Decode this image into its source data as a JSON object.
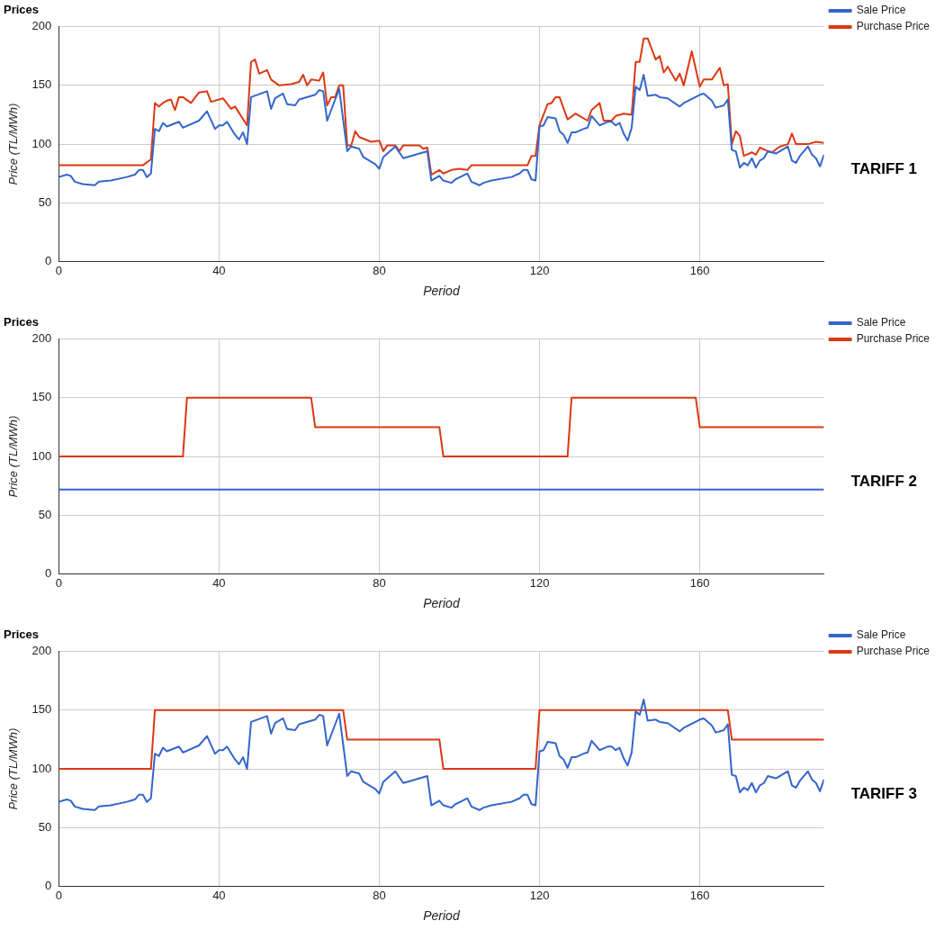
{
  "chart_data": [
    {
      "type": "line",
      "title": "Prices",
      "xlabel": "Period",
      "ylabel": "Price (TL/MWh)",
      "xlim": [
        0,
        191
      ],
      "ylim": [
        0,
        200
      ],
      "xticks": [
        0,
        40,
        80,
        120,
        160
      ],
      "yticks": [
        0,
        50,
        100,
        150,
        200
      ],
      "grid": true,
      "legend": "top right",
      "annotations": [
        "TARIFF 1"
      ],
      "series": [
        {
          "name": "Sale Price",
          "color": "#3366cc",
          "x": [
            0,
            2,
            3,
            4,
            6,
            9,
            10,
            13,
            17,
            19,
            20,
            21,
            22,
            23,
            24,
            25,
            26,
            27,
            30,
            31,
            35,
            37,
            39,
            40,
            41,
            42,
            44,
            45,
            46,
            47,
            48,
            52,
            53,
            54,
            56,
            57,
            59,
            60,
            64,
            65,
            66,
            67,
            70,
            72,
            73,
            75,
            76,
            79,
            80,
            81,
            84,
            86,
            92,
            93,
            95,
            96,
            98,
            99,
            102,
            103,
            105,
            106,
            108,
            113,
            115,
            116,
            117,
            118,
            119,
            120,
            121,
            122,
            124,
            125,
            126,
            127,
            128,
            129,
            131,
            132,
            133,
            135,
            137,
            138,
            139,
            140,
            141,
            142,
            143,
            144,
            145,
            146,
            147,
            149,
            150,
            152,
            155,
            156,
            160,
            161,
            163,
            164,
            166,
            167,
            168,
            169,
            170,
            171,
            172,
            173,
            174,
            175,
            176,
            177,
            179,
            182,
            183,
            184,
            185,
            187,
            188,
            189,
            190,
            191
          ],
          "values": [
            72,
            74,
            73,
            68,
            66,
            65,
            68,
            69,
            72,
            74,
            78,
            78,
            72,
            75,
            113,
            111,
            118,
            115,
            119,
            114,
            120,
            128,
            113,
            116,
            116,
            119,
            108,
            104,
            110,
            100,
            140,
            145,
            130,
            139,
            143,
            134,
            133,
            138,
            142,
            146,
            145,
            120,
            147,
            94,
            98,
            96,
            89,
            83,
            79,
            89,
            98,
            88,
            94,
            69,
            73,
            69,
            67,
            70,
            75,
            68,
            65,
            67,
            69,
            72,
            75,
            78,
            78,
            70,
            69,
            115,
            116,
            123,
            122,
            111,
            108,
            101,
            110,
            110,
            113,
            114,
            124,
            116,
            119,
            119,
            116,
            118,
            109,
            103,
            114,
            149,
            146,
            159,
            141,
            142,
            140,
            139,
            132,
            135,
            142,
            143,
            137,
            131,
            133,
            138,
            95,
            94,
            80,
            84,
            82,
            88,
            80,
            86,
            88,
            94,
            92,
            98,
            86,
            84,
            90,
            98,
            91,
            88,
            81,
            91
          ]
        },
        {
          "name": "Purchase Price",
          "color": "#dc3912",
          "x": [
            0,
            21,
            23,
            24,
            25,
            26,
            27,
            28,
            29,
            30,
            31,
            33,
            35,
            37,
            38,
            41,
            43,
            44,
            47,
            48,
            49,
            50,
            52,
            53,
            55,
            58,
            60,
            61,
            62,
            63,
            65,
            66,
            67,
            68,
            69,
            70,
            71,
            72,
            73,
            74,
            75,
            78,
            80,
            81,
            82,
            84,
            85,
            86,
            90,
            91,
            92,
            93,
            95,
            96,
            98,
            100,
            102,
            103,
            117,
            118,
            119,
            120,
            122,
            123,
            124,
            125,
            127,
            129,
            130,
            132,
            133,
            135,
            136,
            138,
            139,
            141,
            143,
            144,
            145,
            146,
            147,
            149,
            150,
            151,
            152,
            154,
            155,
            156,
            158,
            160,
            161,
            163,
            165,
            166,
            167,
            168,
            169,
            170,
            171,
            173,
            174,
            175,
            177,
            178,
            180,
            182,
            183,
            184,
            187,
            189,
            191
          ],
          "values": [
            82,
            82,
            87,
            135,
            132,
            135,
            137,
            138,
            129,
            140,
            140,
            135,
            144,
            145,
            136,
            139,
            130,
            132,
            116,
            170,
            172,
            160,
            163,
            155,
            150,
            151,
            153,
            159,
            150,
            155,
            154,
            161,
            133,
            140,
            140,
            150,
            150,
            99,
            99,
            111,
            106,
            102,
            103,
            94,
            99,
            99,
            94,
            99,
            99,
            96,
            97,
            74,
            78,
            75,
            78,
            79,
            78,
            82,
            82,
            90,
            90,
            116,
            134,
            135,
            140,
            140,
            121,
            126,
            124,
            120,
            129,
            135,
            120,
            120,
            124,
            126,
            125,
            170,
            170,
            190,
            190,
            172,
            175,
            161,
            166,
            154,
            160,
            150,
            179,
            149,
            155,
            155,
            165,
            150,
            151,
            100,
            111,
            107,
            90,
            93,
            91,
            97,
            94,
            93,
            98,
            100,
            109,
            100,
            100,
            102,
            101
          ]
        }
      ]
    },
    {
      "type": "line",
      "title": "Prices",
      "xlabel": "Period",
      "ylabel": "Price (TL/MWh)",
      "xlim": [
        0,
        191
      ],
      "ylim": [
        0,
        200
      ],
      "xticks": [
        0,
        40,
        80,
        120,
        160
      ],
      "yticks": [
        0,
        50,
        100,
        150,
        200
      ],
      "grid": true,
      "legend": "top right",
      "annotations": [
        "TARIFF 2"
      ],
      "series": [
        {
          "name": "Sale Price",
          "color": "#3366cc",
          "x": [
            0,
            191
          ],
          "values": [
            72,
            72
          ]
        },
        {
          "name": "Purchase Price",
          "color": "#dc3912",
          "x": [
            0,
            31,
            32,
            63,
            64,
            95,
            96,
            127,
            128,
            159,
            160,
            191
          ],
          "values": [
            100,
            100,
            150,
            150,
            125,
            125,
            100,
            100,
            150,
            150,
            125,
            125
          ]
        }
      ]
    },
    {
      "type": "line",
      "title": "Prices",
      "xlabel": "Period",
      "ylabel": "Price (TL/MWh)",
      "xlim": [
        0,
        191
      ],
      "ylim": [
        0,
        200
      ],
      "xticks": [
        0,
        40,
        80,
        120,
        160
      ],
      "yticks": [
        0,
        50,
        100,
        150,
        200
      ],
      "grid": true,
      "legend": "top right",
      "annotations": [
        "TARIFF 3"
      ],
      "series": [
        {
          "name": "Sale Price",
          "color": "#3366cc",
          "x": [
            0,
            2,
            3,
            4,
            6,
            9,
            10,
            13,
            17,
            19,
            20,
            21,
            22,
            23,
            24,
            25,
            26,
            27,
            30,
            31,
            35,
            37,
            39,
            40,
            41,
            42,
            44,
            45,
            46,
            47,
            48,
            52,
            53,
            54,
            56,
            57,
            59,
            60,
            64,
            65,
            66,
            67,
            70,
            72,
            73,
            75,
            76,
            79,
            80,
            81,
            84,
            86,
            92,
            93,
            95,
            96,
            98,
            99,
            102,
            103,
            105,
            106,
            108,
            113,
            115,
            116,
            117,
            118,
            119,
            120,
            121,
            122,
            124,
            125,
            126,
            127,
            128,
            129,
            131,
            132,
            133,
            135,
            137,
            138,
            139,
            140,
            141,
            142,
            143,
            144,
            145,
            146,
            147,
            149,
            150,
            152,
            155,
            156,
            160,
            161,
            163,
            164,
            166,
            167,
            168,
            169,
            170,
            171,
            172,
            173,
            174,
            175,
            176,
            177,
            179,
            182,
            183,
            184,
            185,
            187,
            188,
            189,
            190,
            191
          ],
          "values": [
            72,
            74,
            73,
            68,
            66,
            65,
            68,
            69,
            72,
            74,
            78,
            78,
            72,
            75,
            113,
            111,
            118,
            115,
            119,
            114,
            120,
            128,
            113,
            116,
            116,
            119,
            108,
            104,
            110,
            100,
            140,
            145,
            130,
            139,
            143,
            134,
            133,
            138,
            142,
            146,
            145,
            120,
            147,
            94,
            98,
            96,
            89,
            83,
            79,
            89,
            98,
            88,
            94,
            69,
            73,
            69,
            67,
            70,
            75,
            68,
            65,
            67,
            69,
            72,
            75,
            78,
            78,
            70,
            69,
            115,
            116,
            123,
            122,
            111,
            108,
            101,
            110,
            110,
            113,
            114,
            124,
            116,
            119,
            119,
            116,
            118,
            109,
            103,
            114,
            149,
            146,
            159,
            141,
            142,
            140,
            139,
            132,
            135,
            142,
            143,
            137,
            131,
            133,
            138,
            95,
            94,
            80,
            84,
            82,
            88,
            80,
            86,
            88,
            94,
            92,
            98,
            86,
            84,
            90,
            98,
            91,
            88,
            81,
            91
          ]
        },
        {
          "name": "Purchase Price",
          "color": "#dc3912",
          "x": [
            0,
            23,
            24,
            71,
            72,
            95,
            96,
            119,
            120,
            167,
            168,
            191
          ],
          "values": [
            100,
            100,
            150,
            150,
            125,
            125,
            100,
            100,
            150,
            150,
            125,
            125
          ]
        }
      ]
    }
  ]
}
